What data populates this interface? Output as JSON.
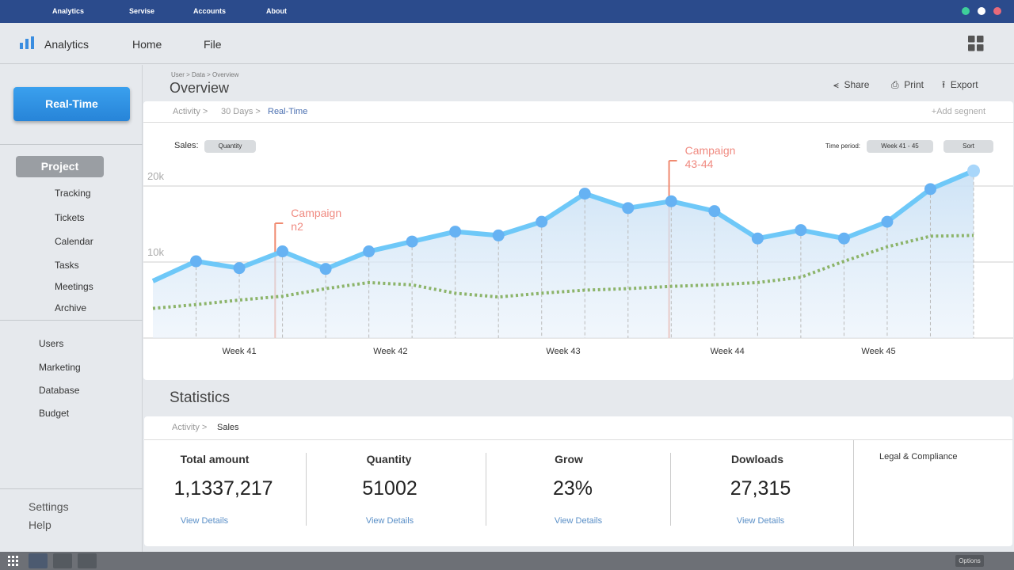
{
  "topbar": {
    "menu": [
      "Analytics",
      "Servise",
      "Accounts",
      "About"
    ]
  },
  "navbar": {
    "brand": "Analytics",
    "links": [
      "Home",
      "File"
    ]
  },
  "sidebar": {
    "primary_button": "Real-Time",
    "section": "Project",
    "section_items": [
      "Tracking",
      "Tickets",
      "Calendar",
      "Tasks",
      "Meetings",
      "Archive"
    ],
    "items": [
      "Users",
      "Marketing",
      "Database",
      "Budget"
    ],
    "footer": [
      "Settings",
      "Help"
    ]
  },
  "overview": {
    "breadcrumb": "User > Data > Overview",
    "title": "Overview",
    "actions": [
      "Share",
      "Print",
      "Export"
    ]
  },
  "chart_card": {
    "crumbs": [
      "Activity >",
      "30 Days >",
      "Real-Time"
    ],
    "add_segment": "+Add segnent",
    "sales_label": "Sales:",
    "sales_value": "Quantity",
    "period_label": "Time period:",
    "period_value": "Week 41 - 45",
    "sort": "Sort"
  },
  "chart_data": {
    "type": "line",
    "x": [
      0,
      1,
      2,
      3,
      4,
      5,
      6,
      7,
      8,
      9,
      10,
      11,
      12,
      13,
      14,
      15,
      16,
      17,
      18,
      19
    ],
    "xlim": [
      0,
      19
    ],
    "xticks": [
      {
        "value": 2,
        "label": "Week 41"
      },
      {
        "value": 5.5,
        "label": "Week 42"
      },
      {
        "value": 9.5,
        "label": "Week 43"
      },
      {
        "value": 13.3,
        "label": "Week 44"
      },
      {
        "value": 16.8,
        "label": "Week 45"
      }
    ],
    "ylim": [
      0,
      25000
    ],
    "yticks": [
      {
        "value": 10000,
        "label": "10k"
      },
      {
        "value": 20000,
        "label": "20k"
      }
    ],
    "grid": true,
    "series": [
      {
        "color": "#6ec8f8",
        "values": [
          7500,
          10100,
          9200,
          11400,
          9100,
          11400,
          12700,
          14000,
          13500,
          15300,
          19000,
          17100,
          18000,
          16700,
          13100,
          14200,
          13100,
          15300,
          19600,
          22000
        ]
      },
      {
        "color": "#8cb46a",
        "values": [
          3900,
          4400,
          5000,
          5500,
          6500,
          7300,
          7000,
          5900,
          5400,
          5900,
          6300,
          6500,
          6800,
          7000,
          7300,
          8000,
          10100,
          12000,
          13400,
          13500
        ]
      }
    ],
    "annotations": [
      {
        "lines": [
          "Campaign",
          "n2"
        ],
        "x": 2.83
      },
      {
        "lines": [
          "Campaign",
          "43-44"
        ],
        "x": 11.95
      }
    ]
  },
  "statistics": {
    "title": "Statistics",
    "crumbs": [
      "Activity >",
      "Sales"
    ],
    "cards": [
      {
        "label": "Total amount",
        "value": "1,1337,217",
        "link": "View Details"
      },
      {
        "label": "Quantity",
        "value": "51002",
        "link": "View Details"
      },
      {
        "label": "Grow",
        "value": "23%",
        "link": "View Details"
      },
      {
        "label": "Dowloads",
        "value": "27,315",
        "link": "View Details"
      }
    ],
    "side": "Legal & Compliance"
  },
  "taskbar": {
    "button": "Options"
  }
}
